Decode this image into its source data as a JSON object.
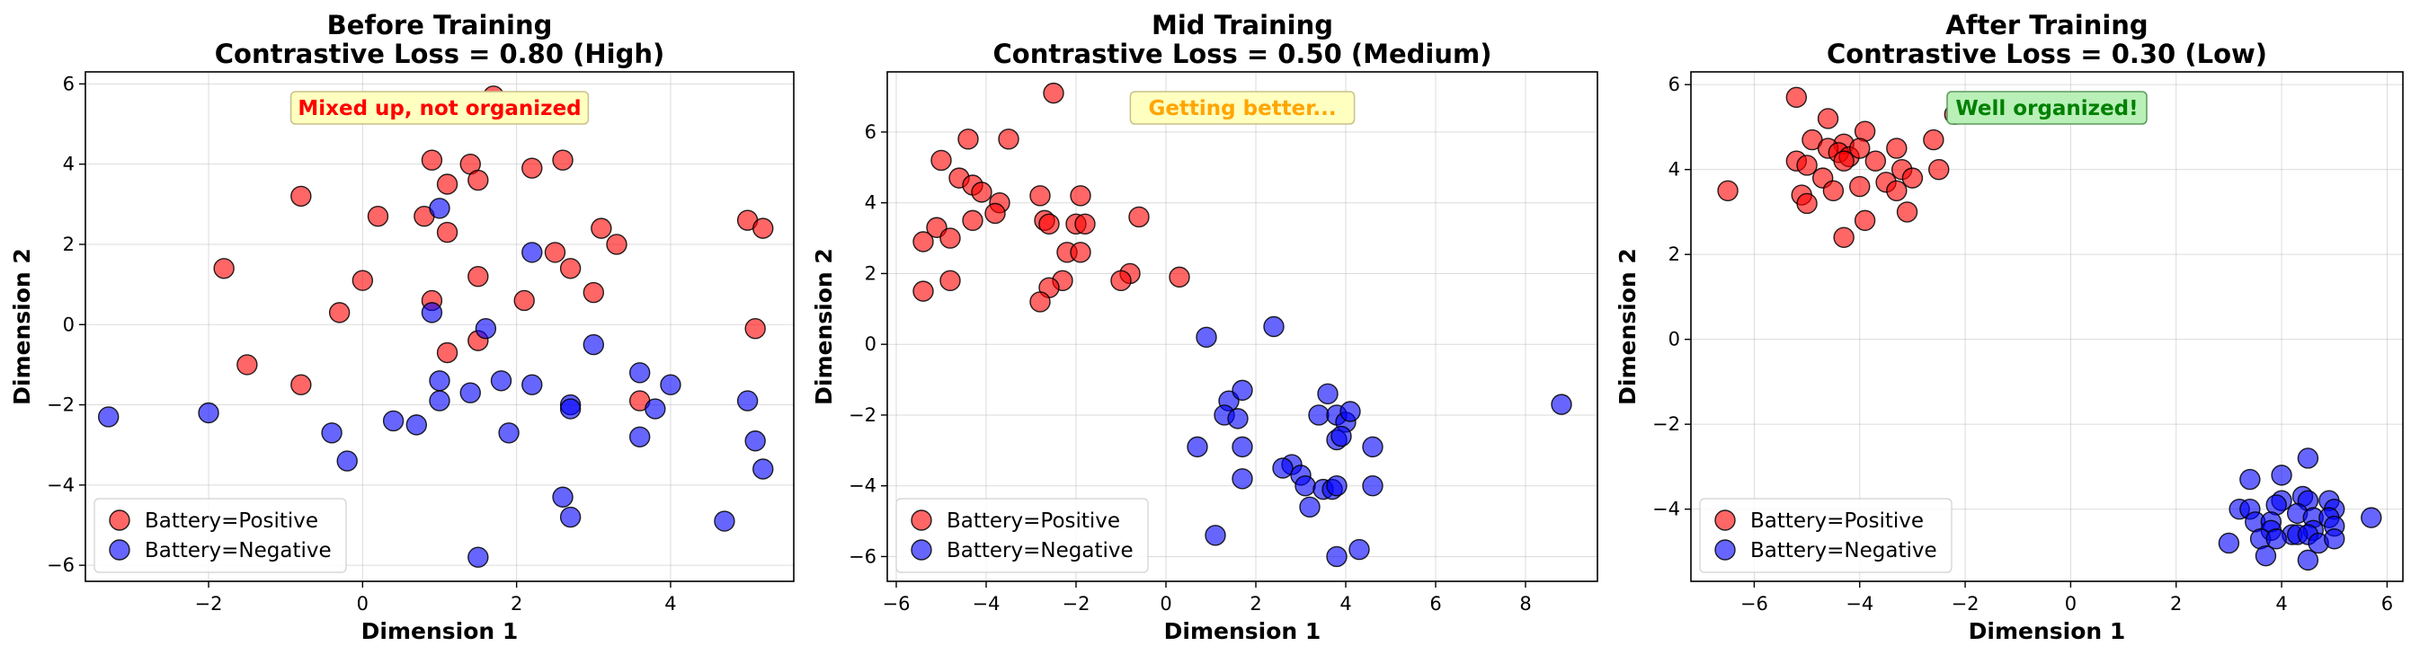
{
  "chart_data": [
    {
      "type": "scatter",
      "title": "Before Training",
      "subtitle": "Contrastive Loss = 0.80 (High)",
      "xlabel": "Dimension 1",
      "ylabel": "Dimension 2",
      "xlim": [
        -3.6,
        5.6
      ],
      "ylim": [
        -6.4,
        6.3
      ],
      "xticks": [
        -2,
        0,
        2,
        4
      ],
      "yticks": [
        -6,
        -4,
        -2,
        0,
        2,
        4,
        6
      ],
      "grid": true,
      "legend_position": "bottom-left",
      "annotation": {
        "text": "Mixed up, not organized",
        "color": "#ff0000",
        "background": "#ffffc0",
        "border": "#c8c08a"
      },
      "series": [
        {
          "name": "Battery=Positive",
          "color": "#ff0000",
          "points": [
            [
              1.7,
              5.7
            ],
            [
              0.9,
              4.1
            ],
            [
              1.4,
              4.0
            ],
            [
              2.6,
              4.1
            ],
            [
              1.1,
              3.5
            ],
            [
              1.5,
              3.6
            ],
            [
              2.2,
              3.9
            ],
            [
              -0.8,
              3.2
            ],
            [
              0.2,
              2.7
            ],
            [
              0.8,
              2.7
            ],
            [
              1.1,
              2.3
            ],
            [
              3.1,
              2.4
            ],
            [
              5.0,
              2.6
            ],
            [
              5.2,
              2.4
            ],
            [
              3.3,
              2.0
            ],
            [
              2.5,
              1.8
            ],
            [
              -1.8,
              1.4
            ],
            [
              1.5,
              1.2
            ],
            [
              2.7,
              1.4
            ],
            [
              0.0,
              1.1
            ],
            [
              3.0,
              0.8
            ],
            [
              2.1,
              0.6
            ],
            [
              0.9,
              0.6
            ],
            [
              -0.3,
              0.3
            ],
            [
              5.1,
              -0.1
            ],
            [
              1.5,
              -0.4
            ],
            [
              1.1,
              -0.7
            ],
            [
              -1.5,
              -1.0
            ],
            [
              -0.8,
              -1.5
            ],
            [
              3.6,
              -1.9
            ]
          ]
        },
        {
          "name": "Battery=Negative",
          "color": "#0000ff",
          "points": [
            [
              1.0,
              2.9
            ],
            [
              2.2,
              1.8
            ],
            [
              0.9,
              0.3
            ],
            [
              1.6,
              -0.1
            ],
            [
              3.0,
              -0.5
            ],
            [
              1.0,
              -1.4
            ],
            [
              1.8,
              -1.4
            ],
            [
              2.2,
              -1.5
            ],
            [
              3.6,
              -1.2
            ],
            [
              4.0,
              -1.5
            ],
            [
              1.4,
              -1.7
            ],
            [
              1.0,
              -1.9
            ],
            [
              2.7,
              -2.0
            ],
            [
              2.7,
              -2.1
            ],
            [
              3.8,
              -2.1
            ],
            [
              5.0,
              -1.9
            ],
            [
              -3.3,
              -2.3
            ],
            [
              -2.0,
              -2.2
            ],
            [
              0.4,
              -2.4
            ],
            [
              0.7,
              -2.5
            ],
            [
              -0.4,
              -2.7
            ],
            [
              1.9,
              -2.7
            ],
            [
              3.6,
              -2.8
            ],
            [
              5.1,
              -2.9
            ],
            [
              -0.2,
              -3.4
            ],
            [
              5.2,
              -3.6
            ],
            [
              2.6,
              -4.3
            ],
            [
              2.7,
              -4.8
            ],
            [
              4.7,
              -4.9
            ],
            [
              1.5,
              -5.8
            ]
          ]
        }
      ]
    },
    {
      "type": "scatter",
      "title": "Mid Training",
      "subtitle": "Contrastive Loss = 0.50 (Medium)",
      "xlabel": "Dimension 1",
      "ylabel": "Dimension 2",
      "xlim": [
        -6.2,
        9.6
      ],
      "ylim": [
        -6.7,
        7.7
      ],
      "xticks": [
        -6,
        -4,
        -2,
        0,
        2,
        4,
        6,
        8
      ],
      "yticks": [
        -6,
        -4,
        -2,
        0,
        2,
        4,
        6
      ],
      "grid": true,
      "legend_position": "bottom-left",
      "annotation": {
        "text": "Getting better...",
        "color": "#ffa500",
        "background": "#ffffc0",
        "border": "#c8c08a"
      },
      "series": [
        {
          "name": "Battery=Positive",
          "color": "#ff0000",
          "points": [
            [
              -2.5,
              7.1
            ],
            [
              -4.4,
              5.8
            ],
            [
              -3.5,
              5.8
            ],
            [
              -5.0,
              5.2
            ],
            [
              -4.6,
              4.7
            ],
            [
              -4.3,
              4.5
            ],
            [
              -4.1,
              4.3
            ],
            [
              -3.7,
              4.0
            ],
            [
              -2.8,
              4.2
            ],
            [
              -1.9,
              4.2
            ],
            [
              -3.8,
              3.7
            ],
            [
              -0.6,
              3.6
            ],
            [
              -4.3,
              3.5
            ],
            [
              -2.7,
              3.5
            ],
            [
              -2.6,
              3.4
            ],
            [
              -2.0,
              3.4
            ],
            [
              -1.8,
              3.4
            ],
            [
              -5.1,
              3.3
            ],
            [
              -4.8,
              3.0
            ],
            [
              -5.4,
              2.9
            ],
            [
              -2.2,
              2.6
            ],
            [
              -1.9,
              2.6
            ],
            [
              -0.8,
              2.0
            ],
            [
              0.3,
              1.9
            ],
            [
              -1.0,
              1.8
            ],
            [
              -4.8,
              1.8
            ],
            [
              -2.3,
              1.8
            ],
            [
              -2.6,
              1.6
            ],
            [
              -5.4,
              1.5
            ],
            [
              -2.8,
              1.2
            ]
          ]
        },
        {
          "name": "Battery=Negative",
          "color": "#0000ff",
          "points": [
            [
              0.9,
              0.2
            ],
            [
              2.4,
              0.5
            ],
            [
              1.4,
              -1.6
            ],
            [
              1.7,
              -1.3
            ],
            [
              3.6,
              -1.4
            ],
            [
              1.3,
              -2.0
            ],
            [
              1.6,
              -2.1
            ],
            [
              3.4,
              -2.0
            ],
            [
              3.8,
              -2.0
            ],
            [
              4.0,
              -2.2
            ],
            [
              4.1,
              -1.9
            ],
            [
              8.8,
              -1.7
            ],
            [
              3.8,
              -2.7
            ],
            [
              3.9,
              -2.6
            ],
            [
              0.7,
              -2.9
            ],
            [
              1.7,
              -2.9
            ],
            [
              4.6,
              -2.9
            ],
            [
              2.8,
              -3.4
            ],
            [
              2.6,
              -3.5
            ],
            [
              1.7,
              -3.8
            ],
            [
              3.0,
              -3.7
            ],
            [
              3.1,
              -4.0
            ],
            [
              3.5,
              -4.1
            ],
            [
              3.7,
              -4.1
            ],
            [
              3.8,
              -4.0
            ],
            [
              4.6,
              -4.0
            ],
            [
              3.2,
              -4.6
            ],
            [
              1.1,
              -5.4
            ],
            [
              4.3,
              -5.8
            ],
            [
              3.8,
              -6.0
            ]
          ]
        }
      ]
    },
    {
      "type": "scatter",
      "title": "After Training",
      "subtitle": "Contrastive Loss = 0.30 (Low)",
      "xlabel": "Dimension 1",
      "ylabel": "Dimension 2",
      "xlim": [
        -7.2,
        6.3
      ],
      "ylim": [
        -5.7,
        6.3
      ],
      "xticks": [
        -6,
        -4,
        -2,
        0,
        2,
        4,
        6
      ],
      "yticks": [
        -4,
        -2,
        0,
        2,
        4,
        6
      ],
      "grid": true,
      "legend_position": "bottom-left",
      "annotation": {
        "text": "Well organized!",
        "color": "#008000",
        "background": "#b8f0b8",
        "border": "#5a9a5a"
      },
      "series": [
        {
          "name": "Battery=Positive",
          "color": "#ff0000",
          "points": [
            [
              -5.2,
              5.7
            ],
            [
              -2.2,
              5.3
            ],
            [
              -4.6,
              5.2
            ],
            [
              -3.9,
              4.9
            ],
            [
              -4.9,
              4.7
            ],
            [
              -2.6,
              4.7
            ],
            [
              -4.3,
              4.6
            ],
            [
              -4.6,
              4.5
            ],
            [
              -4.4,
              4.4
            ],
            [
              -4.2,
              4.3
            ],
            [
              -3.3,
              4.5
            ],
            [
              -4.3,
              4.2
            ],
            [
              -4.0,
              4.5
            ],
            [
              -5.2,
              4.2
            ],
            [
              -3.7,
              4.2
            ],
            [
              -3.2,
              4.0
            ],
            [
              -2.5,
              4.0
            ],
            [
              -5.0,
              4.1
            ],
            [
              -3.0,
              3.8
            ],
            [
              -4.7,
              3.8
            ],
            [
              -3.5,
              3.7
            ],
            [
              -6.5,
              3.5
            ],
            [
              -4.5,
              3.5
            ],
            [
              -4.0,
              3.6
            ],
            [
              -3.3,
              3.5
            ],
            [
              -5.1,
              3.4
            ],
            [
              -5.0,
              3.2
            ],
            [
              -3.1,
              3.0
            ],
            [
              -3.9,
              2.8
            ],
            [
              -4.3,
              2.4
            ]
          ]
        },
        {
          "name": "Battery=Negative",
          "color": "#0000ff",
          "points": [
            [
              4.5,
              -2.8
            ],
            [
              3.4,
              -3.3
            ],
            [
              4.0,
              -3.2
            ],
            [
              4.4,
              -3.7
            ],
            [
              4.5,
              -3.8
            ],
            [
              4.9,
              -3.8
            ],
            [
              5.0,
              -4.0
            ],
            [
              4.0,
              -3.8
            ],
            [
              3.9,
              -3.9
            ],
            [
              3.2,
              -4.0
            ],
            [
              3.4,
              -4.0
            ],
            [
              5.7,
              -4.2
            ],
            [
              4.3,
              -4.1
            ],
            [
              4.6,
              -4.2
            ],
            [
              3.5,
              -4.3
            ],
            [
              3.8,
              -4.3
            ],
            [
              4.9,
              -4.2
            ],
            [
              5.0,
              -4.4
            ],
            [
              4.6,
              -4.5
            ],
            [
              3.8,
              -4.5
            ],
            [
              4.2,
              -4.6
            ],
            [
              4.3,
              -4.6
            ],
            [
              4.5,
              -4.6
            ],
            [
              3.0,
              -4.8
            ],
            [
              3.6,
              -4.7
            ],
            [
              3.9,
              -4.7
            ],
            [
              4.7,
              -4.8
            ],
            [
              5.0,
              -4.7
            ],
            [
              3.7,
              -5.1
            ],
            [
              4.5,
              -5.2
            ]
          ]
        }
      ]
    }
  ]
}
